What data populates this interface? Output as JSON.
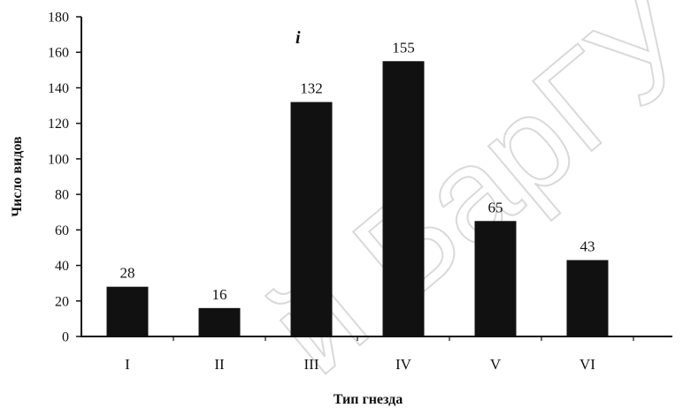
{
  "chart_data": {
    "type": "bar",
    "categories": [
      "I",
      "II",
      "III",
      "IV",
      "V",
      "VI"
    ],
    "values": [
      28,
      16,
      132,
      155,
      65,
      43
    ],
    "data_labels": [
      "28",
      "16",
      "132",
      "155",
      "65",
      "43"
    ],
    "xlabel": "Тип гнезда",
    "ylabel": "Число видов",
    "ylim": [
      0,
      180
    ],
    "yticks": [
      0,
      20,
      40,
      60,
      80,
      100,
      120,
      140,
      160,
      180
    ],
    "grid": false,
    "bar_color": "#111111",
    "annotation": "i",
    "watermark": "й БарГУ"
  }
}
